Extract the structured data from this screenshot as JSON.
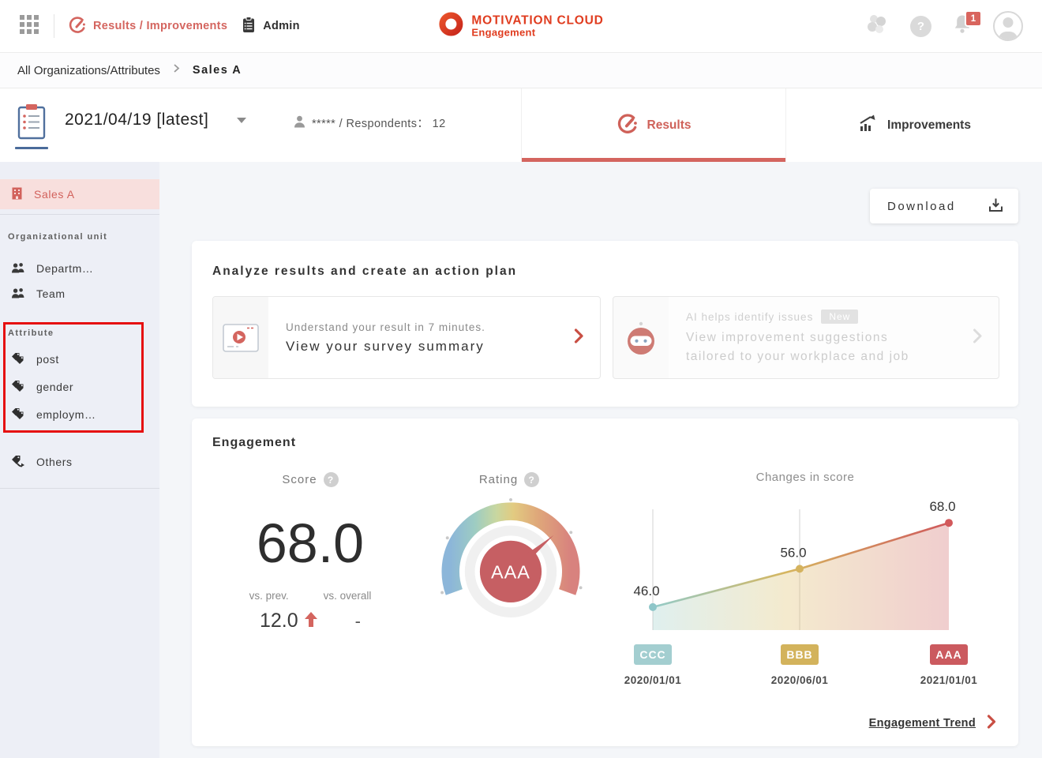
{
  "header": {
    "nav_results": "Results / Improvements",
    "nav_admin": "Admin",
    "logo_title": "MOTIVATION CLOUD",
    "logo_subtitle": "Engagement",
    "notification_badge": "1"
  },
  "breadcrumb": {
    "root": "All Organizations/Attributes",
    "current": "Sales A"
  },
  "survey": {
    "date": "2021/04/19 [latest]",
    "respondents": "***** / Respondents： 12",
    "tab_results": "Results",
    "tab_improvements": "Improvements"
  },
  "sidebar": {
    "current_org": "Sales A",
    "org_unit_label": "Organizational unit",
    "org_items": [
      "Departm…",
      "Team"
    ],
    "attribute_label": "Attribute",
    "attribute_items": [
      "post",
      "gender",
      "employm…"
    ],
    "others_label": "Others"
  },
  "main": {
    "download_label": "Download",
    "analyze": {
      "heading": "Analyze results and create an action plan",
      "video_line1": "Understand your result in 7 minutes.",
      "video_line2": "View your survey summary",
      "ai_line1": "AI helps identify issues",
      "ai_badge": "New",
      "ai_line2": "View improvement suggestions tailored to your workplace and job"
    },
    "engagement": {
      "heading": "Engagement",
      "score_label": "Score",
      "rating_label": "Rating",
      "score_value": "68.0",
      "vs_prev_label": "vs. prev.",
      "vs_prev_value": "12.0",
      "vs_overall_label": "vs. overall",
      "vs_overall_value": "-",
      "rating_value": "AAA",
      "trend_label": "Engagement Trend"
    }
  },
  "colors": {
    "accent_red": "#d4655f",
    "brand_red": "#e03c1f",
    "annotation_red": "#e60f0f",
    "badge_teal": "#a3ced0",
    "badge_gold": "#d3b35c",
    "badge_red": "#cb5a5f"
  },
  "chart_data": {
    "type": "area",
    "title": "Changes in score",
    "x": [
      "2020/01/01",
      "2020/06/01",
      "2021/01/01"
    ],
    "values": [
      46.0,
      56.0,
      68.0
    ],
    "ratings": [
      "CCC",
      "BBB",
      "AAA"
    ],
    "point_colors": [
      "#8ec6c9",
      "#d5b35e",
      "#d2595b"
    ],
    "badge_colors": [
      "#a3ced0",
      "#d3b35c",
      "#cb5a5f"
    ],
    "ylim": [
      40,
      75
    ],
    "xlabel": "",
    "ylabel": "",
    "grid": "vertical lines at first two points",
    "legend": "none"
  }
}
